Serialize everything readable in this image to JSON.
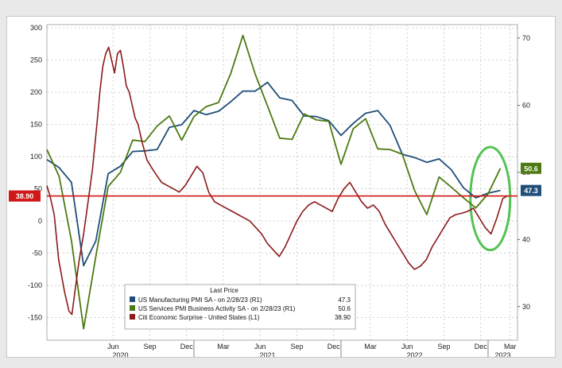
{
  "chart_data": {
    "type": "line",
    "legend": {
      "title": "Last Price",
      "placement": "bottom-center",
      "entries": [
        {
          "label": "US Manufacturing PMI SA - on 2/28/23 (R1)",
          "value": "47.3",
          "color": "#1f4e79"
        },
        {
          "label": "US Services PMI Business Activity SA - on 2/28/23 (R1)",
          "value": "50.6",
          "color": "#4d7a12"
        },
        {
          "label": "Citi Economic Surprise - United States (L1)",
          "value": "38.90",
          "color": "#8b1a1a"
        }
      ]
    },
    "x_axis": {
      "min": 2020.0,
      "max": 2023.2,
      "month_ticks": [
        {
          "x": 2020.45,
          "label": "Jun"
        },
        {
          "x": 2020.7,
          "label": "Sep"
        },
        {
          "x": 2020.95,
          "label": "Dec"
        },
        {
          "x": 2021.2,
          "label": "Mar"
        },
        {
          "x": 2021.45,
          "label": "Jun"
        },
        {
          "x": 2021.7,
          "label": "Sep"
        },
        {
          "x": 2021.95,
          "label": "Dec"
        },
        {
          "x": 2022.2,
          "label": "Mar"
        },
        {
          "x": 2022.45,
          "label": "Jun"
        },
        {
          "x": 2022.7,
          "label": "Sep"
        },
        {
          "x": 2022.95,
          "label": "Dec"
        },
        {
          "x": 2023.15,
          "label": "Mar"
        }
      ],
      "year_labels": [
        {
          "x": 2020.5,
          "label": "2020"
        },
        {
          "x": 2021.5,
          "label": "2021"
        },
        {
          "x": 2022.5,
          "label": "2022"
        },
        {
          "x": 2023.1,
          "label": "2023"
        }
      ]
    },
    "y_left": {
      "min": -185,
      "max": 305,
      "ticks": [
        300,
        250,
        200,
        150,
        100,
        50,
        0,
        -50,
        -100,
        -150
      ]
    },
    "y_right": {
      "min": 25,
      "max": 72,
      "ticks": [
        70,
        60,
        50,
        40,
        30
      ]
    },
    "grid": true,
    "reference_line": {
      "axis": "left",
      "value": 38.9,
      "label": "38.90",
      "color": "#d01818"
    },
    "end_labels": [
      {
        "axis": "right",
        "value": 50.6,
        "label": "50.6",
        "color": "#4d7a12"
      },
      {
        "axis": "right",
        "value": 47.3,
        "label": "47.3",
        "color": "#1f4e79"
      }
    ],
    "highlight": {
      "type": "ellipse",
      "color": "#36b836",
      "x_range": [
        2022.88,
        2023.15
      ],
      "y_left_range": [
        -45,
        115
      ]
    },
    "series": [
      {
        "name": "US Manufacturing PMI SA - on 2/28/23 (R1)",
        "axis": "right",
        "color": "#1f4e79",
        "x": [
          2020.0,
          2020.083,
          2020.167,
          2020.25,
          2020.333,
          2020.417,
          2020.5,
          2020.583,
          2020.667,
          2020.75,
          2020.833,
          2020.917,
          2021.0,
          2021.083,
          2021.167,
          2021.25,
          2021.333,
          2021.417,
          2021.5,
          2021.583,
          2021.667,
          2021.75,
          2021.833,
          2021.917,
          2022.0,
          2022.083,
          2022.167,
          2022.25,
          2022.333,
          2022.417,
          2022.5,
          2022.583,
          2022.667,
          2022.75,
          2022.833,
          2022.917,
          2023.0,
          2023.083
        ],
        "y": [
          51.9,
          50.7,
          48.5,
          36.1,
          39.8,
          49.8,
          50.9,
          53.1,
          53.2,
          53.4,
          56.7,
          57.1,
          59.2,
          58.6,
          59.1,
          60.5,
          62.1,
          62.1,
          63.4,
          61.1,
          60.7,
          58.4,
          58.3,
          57.7,
          55.5,
          57.3,
          58.8,
          59.2,
          57.0,
          52.7,
          52.2,
          51.5,
          52.0,
          50.4,
          47.7,
          46.2,
          46.9,
          47.3
        ]
      },
      {
        "name": "US Services PMI Business Activity SA - on 2/28/23 (R1)",
        "axis": "right",
        "color": "#4d7a12",
        "x": [
          2020.0,
          2020.083,
          2020.167,
          2020.25,
          2020.333,
          2020.417,
          2020.5,
          2020.583,
          2020.667,
          2020.75,
          2020.833,
          2020.917,
          2021.0,
          2021.083,
          2021.167,
          2021.25,
          2021.333,
          2021.417,
          2021.5,
          2021.583,
          2021.667,
          2021.75,
          2021.833,
          2021.917,
          2022.0,
          2022.083,
          2022.167,
          2022.25,
          2022.333,
          2022.417,
          2022.5,
          2022.583,
          2022.667,
          2022.75,
          2022.833,
          2022.917,
          2023.0,
          2023.083
        ],
        "y": [
          53.4,
          49.4,
          39.8,
          26.7,
          37.5,
          47.9,
          50.0,
          54.8,
          54.6,
          56.9,
          58.4,
          54.8,
          58.3,
          59.8,
          60.4,
          64.7,
          70.4,
          64.6,
          59.9,
          55.1,
          54.9,
          58.7,
          57.8,
          57.6,
          51.2,
          56.5,
          58.0,
          53.5,
          53.4,
          52.7,
          47.3,
          43.7,
          49.3,
          47.8,
          46.2,
          44.7,
          46.8,
          50.6
        ]
      },
      {
        "name": "Citi Economic Surprise - United States (L1)",
        "axis": "left",
        "color": "#8b1a1a",
        "x": [
          2020.0,
          2020.02,
          2020.05,
          2020.08,
          2020.12,
          2020.15,
          2020.17,
          2020.19,
          2020.22,
          2020.25,
          2020.28,
          2020.31,
          2020.34,
          2020.36,
          2020.38,
          2020.4,
          2020.42,
          2020.44,
          2020.46,
          2020.48,
          2020.5,
          2020.52,
          2020.54,
          2020.56,
          2020.58,
          2020.6,
          2020.62,
          2020.65,
          2020.68,
          2020.72,
          2020.75,
          2020.78,
          2020.82,
          2020.86,
          2020.9,
          2020.94,
          2020.98,
          2021.02,
          2021.06,
          2021.1,
          2021.14,
          2021.18,
          2021.22,
          2021.26,
          2021.3,
          2021.34,
          2021.38,
          2021.42,
          2021.46,
          2021.5,
          2021.54,
          2021.58,
          2021.62,
          2021.66,
          2021.7,
          2021.74,
          2021.78,
          2021.82,
          2021.86,
          2021.9,
          2021.94,
          2021.98,
          2022.02,
          2022.06,
          2022.1,
          2022.14,
          2022.18,
          2022.22,
          2022.26,
          2022.3,
          2022.34,
          2022.38,
          2022.42,
          2022.46,
          2022.5,
          2022.54,
          2022.58,
          2022.62,
          2022.66,
          2022.7,
          2022.74,
          2022.78,
          2022.82,
          2022.86,
          2022.9,
          2022.94,
          2022.98,
          2023.02,
          2023.06,
          2023.1,
          2023.13
        ],
        "y": [
          55,
          40,
          10,
          -60,
          -110,
          -140,
          -145,
          -110,
          -60,
          -20,
          30,
          80,
          150,
          200,
          240,
          260,
          270,
          250,
          230,
          260,
          265,
          240,
          210,
          200,
          180,
          160,
          150,
          120,
          95,
          80,
          70,
          60,
          55,
          50,
          45,
          55,
          70,
          85,
          75,
          45,
          30,
          25,
          20,
          15,
          10,
          5,
          0,
          -10,
          -20,
          -35,
          -45,
          -55,
          -40,
          -20,
          0,
          15,
          25,
          30,
          25,
          20,
          15,
          35,
          50,
          60,
          45,
          30,
          20,
          25,
          15,
          -5,
          -20,
          -35,
          -50,
          -65,
          -75,
          -70,
          -60,
          -40,
          -25,
          -10,
          5,
          10,
          12,
          15,
          20,
          5,
          -10,
          -20,
          5,
          35,
          38.9
        ]
      }
    ]
  }
}
